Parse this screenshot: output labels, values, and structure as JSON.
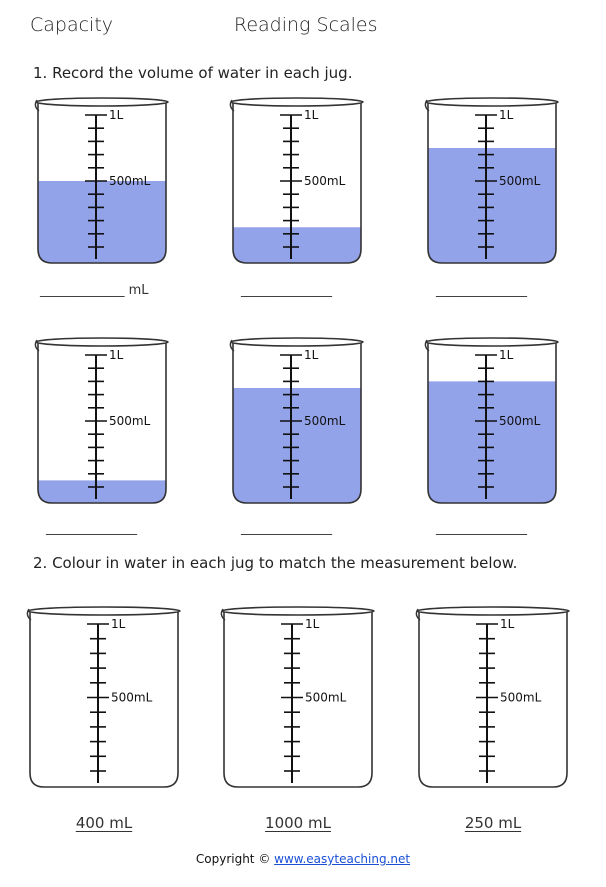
{
  "header": {
    "left": "Capacity",
    "right": "Reading Scales"
  },
  "questions": {
    "q1": "1. Record the volume of water in each jug.",
    "q2": "2. Colour in water in each jug to match the measurement below."
  },
  "scale": {
    "top_label": "1L",
    "mid_label": "500mL",
    "capacity_ml": 1000
  },
  "water_color": "#93a3ea",
  "q1_jugs": [
    {
      "fill_ml": 500,
      "answer": "_____________ mL"
    },
    {
      "fill_ml": 150,
      "answer": "______________"
    },
    {
      "fill_ml": 750,
      "answer": "______________"
    },
    {
      "fill_ml": 50,
      "answer": "______________"
    },
    {
      "fill_ml": 750,
      "answer": "______________"
    },
    {
      "fill_ml": 800,
      "answer": "______________"
    }
  ],
  "q2_jugs": [
    {
      "target": "400 mL"
    },
    {
      "target": "1000 mL"
    },
    {
      "target": "250 mL"
    }
  ],
  "footer": {
    "prefix": "Copyright © ",
    "link": "www.easyteaching.net"
  }
}
